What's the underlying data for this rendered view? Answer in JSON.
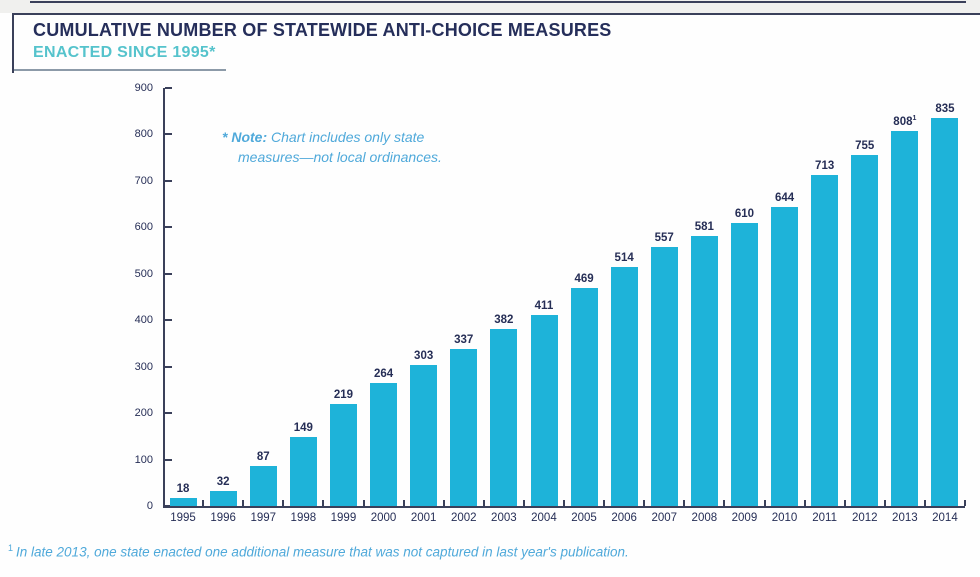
{
  "header": {
    "title_line1": "CUMULATIVE NUMBER OF STATEWIDE ANTI-CHOICE MEASURES",
    "title_line2": "ENACTED SINCE 1995*"
  },
  "note": {
    "prefix": "* Note:",
    "line1": " Chart includes only state",
    "line2": "measures—not local ordinances."
  },
  "footnote": {
    "marker": "1",
    "text": "In late 2013, one state enacted one additional measure that was not captured in last year's publication."
  },
  "colors": {
    "bar": "#1eb3d9",
    "title_navy": "#252e5a",
    "subtitle_teal": "#55c3cc",
    "note_blue": "#4fa9da",
    "axis": "#3a405a"
  },
  "chart_data": {
    "type": "bar",
    "title": "Cumulative number of statewide anti-choice measures enacted since 1995",
    "categories": [
      "1995",
      "1996",
      "1997",
      "1998",
      "1999",
      "2000",
      "2001",
      "2002",
      "2003",
      "2004",
      "2005",
      "2006",
      "2007",
      "2008",
      "2009",
      "2010",
      "2011",
      "2012",
      "2013",
      "2014"
    ],
    "values": [
      18,
      32,
      87,
      149,
      219,
      264,
      303,
      337,
      382,
      411,
      469,
      514,
      557,
      581,
      610,
      644,
      713,
      755,
      808,
      835
    ],
    "bar_label_superscript": {
      "index": 18,
      "mark": "1"
    },
    "xlabel": "",
    "ylabel": "",
    "ylim": [
      0,
      900
    ],
    "ytick_interval": 100,
    "grid": false,
    "legend": false,
    "bar_labels_shown": true
  }
}
